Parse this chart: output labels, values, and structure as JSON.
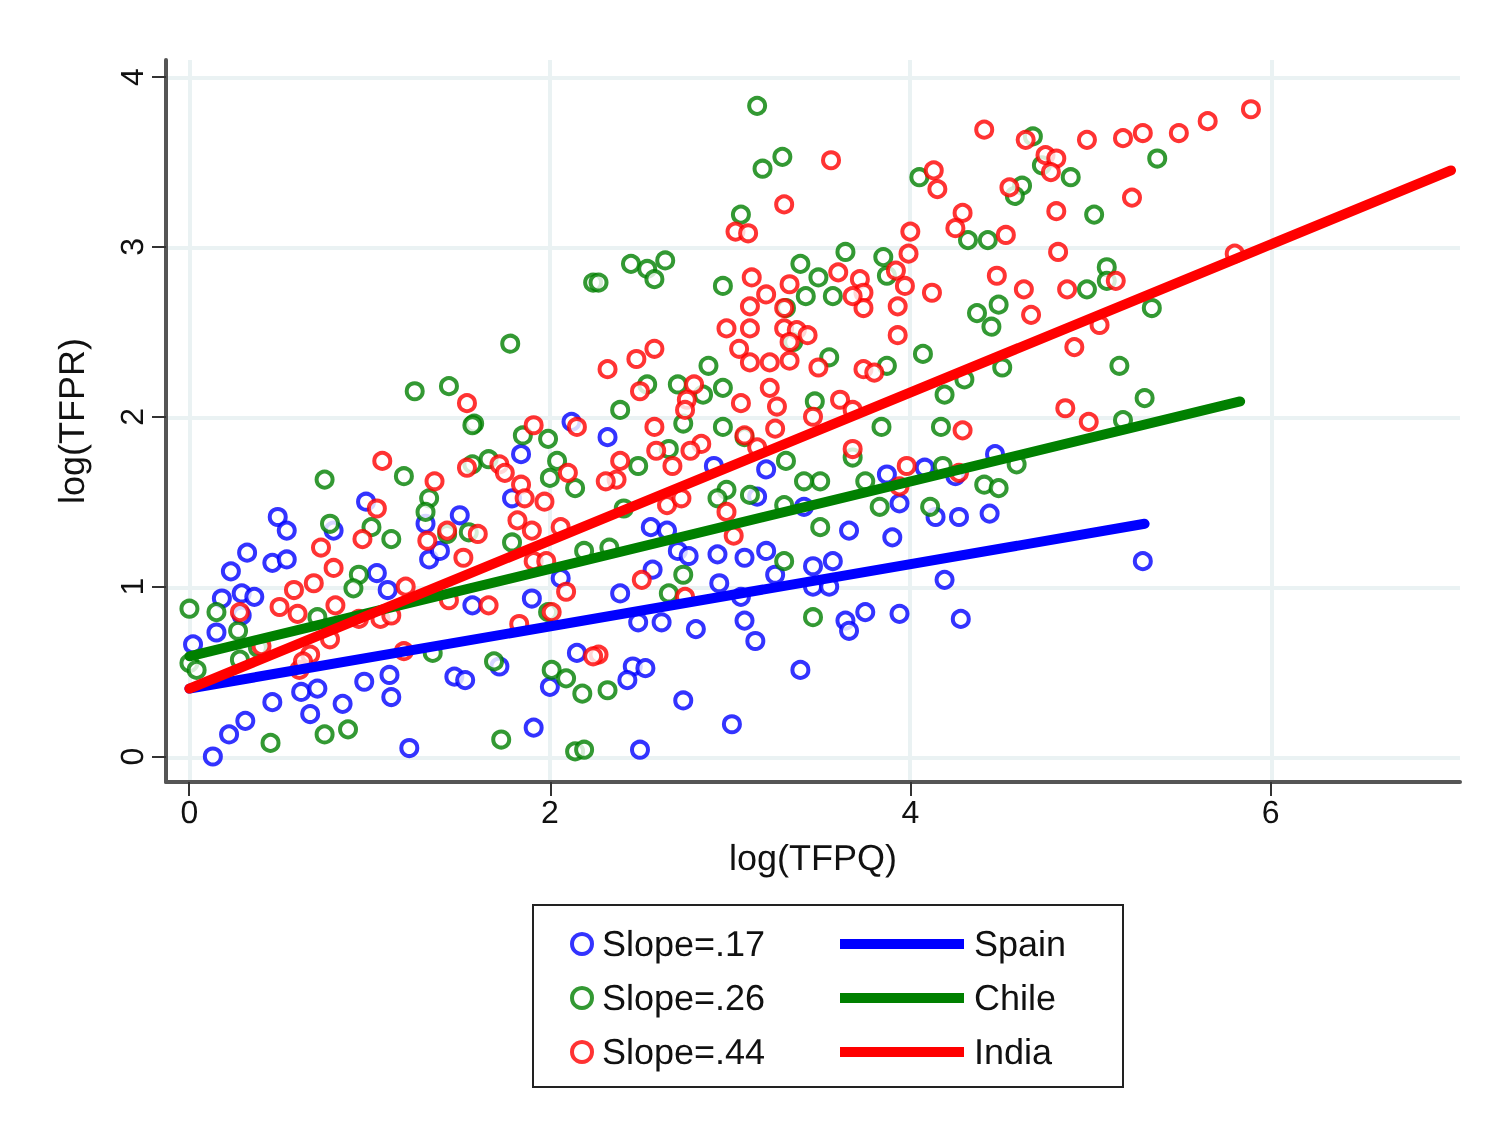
{
  "chart_data": {
    "type": "scatter",
    "xlabel": "log(TFPQ)",
    "ylabel": "log(TFPR)",
    "xlim": [
      -0.13,
      7.05
    ],
    "ylim": [
      -0.15,
      4.1
    ],
    "xticks": [
      0,
      2,
      4,
      6
    ],
    "yticks": [
      0,
      1,
      2,
      3,
      4
    ],
    "grid": true,
    "legend": "bottom",
    "series": [
      {
        "name": "Slope=.17",
        "marker": "circle",
        "color": "#0000ff",
        "x": [
          0.02,
          0.13,
          0.22,
          0.31,
          0.15,
          0.18,
          0.23,
          0.29,
          0.32,
          0.29,
          0.36,
          0.46,
          0.49,
          0.54,
          0.54,
          0.46,
          0.62,
          0.67,
          0.71,
          0.85,
          0.97,
          1.12,
          1.11,
          1.22,
          0.98,
          0.8,
          1.04,
          1.1,
          1.33,
          1.31,
          1.5,
          1.39,
          1.47,
          1.53,
          1.57,
          1.72,
          1.84,
          1.79,
          1.91,
          1.9,
          2.0,
          2.12,
          2.06,
          2.15,
          2.32,
          2.5,
          2.74,
          3.01,
          3.39,
          2.46,
          2.43,
          2.53,
          2.49,
          2.62,
          2.81,
          3.14,
          3.08,
          2.39,
          2.57,
          2.94,
          3.06,
          2.71,
          2.77,
          2.93,
          3.08,
          3.2,
          3.25,
          3.46,
          3.46,
          3.55,
          3.57,
          3.66,
          3.64,
          3.66,
          3.75,
          3.94,
          4.28,
          4.19,
          4.27,
          4.44,
          5.29,
          2.56,
          2.65,
          2.91,
          3.2,
          3.41,
          3.87,
          3.9,
          3.94,
          4.08,
          4.14,
          4.25,
          4.47,
          3.15
        ],
        "values": [
          0.66,
          0.0,
          0.13,
          0.21,
          0.73,
          0.93,
          1.09,
          0.83,
          1.2,
          0.96,
          0.94,
          1.14,
          1.41,
          1.33,
          1.16,
          0.32,
          0.38,
          0.25,
          0.4,
          0.31,
          0.44,
          0.35,
          0.48,
          0.05,
          1.5,
          1.33,
          1.08,
          0.98,
          1.16,
          1.37,
          1.42,
          1.21,
          0.47,
          0.45,
          0.89,
          0.53,
          1.78,
          1.52,
          0.17,
          0.93,
          0.41,
          1.97,
          1.05,
          0.61,
          1.88,
          0.04,
          0.33,
          0.19,
          0.51,
          0.53,
          0.45,
          0.52,
          0.79,
          0.79,
          0.75,
          0.68,
          0.8,
          0.96,
          1.1,
          1.02,
          0.94,
          1.21,
          1.18,
          1.19,
          1.17,
          1.21,
          1.07,
          1.12,
          1.0,
          1.0,
          1.15,
          1.33,
          0.8,
          0.74,
          0.85,
          0.84,
          0.81,
          1.04,
          1.41,
          1.43,
          1.15,
          1.35,
          1.33,
          1.71,
          1.69,
          1.47,
          1.66,
          1.29,
          1.49,
          1.7,
          1.41,
          1.65,
          1.78,
          1.53
        ]
      },
      {
        "name": "Slope=.26",
        "marker": "circle",
        "color": "#008000",
        "x": [
          1.25,
          1.44,
          1.78,
          1.58,
          2.24,
          3.15,
          3.18,
          3.29,
          3.06,
          2.27,
          2.45,
          2.54,
          2.58,
          2.64,
          2.96,
          3.39,
          3.49,
          3.64,
          3.85,
          3.87,
          3.42,
          3.57,
          3.31,
          3.35,
          2.88,
          2.54,
          2.71,
          2.85,
          2.96,
          3.55,
          3.87,
          4.07,
          4.05,
          4.32,
          4.43,
          4.68,
          4.73,
          4.62,
          4.58,
          4.89,
          5.02,
          5.37,
          4.37,
          4.49,
          4.45,
          5.09,
          5.09,
          4.98,
          5.34,
          5.16,
          5.3,
          4.51,
          4.19,
          4.3,
          2.39,
          3.47,
          3.84,
          4.17,
          5.18,
          0.0,
          0.0,
          0.04,
          0.15,
          0.27,
          0.28,
          0.45,
          0.38,
          0.75,
          0.78,
          0.75,
          0.88,
          0.71,
          0.94,
          0.91,
          1.01,
          1.12,
          1.19,
          1.33,
          1.31,
          1.43,
          1.57,
          1.57,
          1.66,
          1.55,
          1.35,
          1.69,
          1.73,
          1.79,
          1.85,
          1.99,
          2.04,
          2.0,
          2.14,
          2.19,
          2.01,
          2.09,
          2.18,
          2.14,
          2.19,
          1.99,
          2.32,
          2.66,
          2.74,
          3.46,
          3.3,
          4.11,
          4.41,
          4.49,
          4.59,
          4.18,
          3.83,
          3.75,
          3.5,
          3.41,
          3.68,
          3.31,
          3.11,
          2.98,
          2.93,
          3.3,
          3.5,
          2.49,
          2.66,
          2.74,
          2.96,
          3.08,
          2.41,
          2.33
        ],
        "values": [
          2.15,
          2.18,
          2.43,
          1.96,
          2.79,
          3.83,
          3.46,
          3.53,
          3.19,
          2.79,
          2.9,
          2.87,
          2.81,
          2.92,
          2.77,
          2.9,
          2.82,
          2.97,
          2.94,
          2.83,
          2.71,
          2.71,
          2.64,
          2.44,
          2.3,
          2.19,
          2.19,
          2.13,
          2.17,
          2.35,
          2.3,
          2.37,
          3.41,
          3.04,
          3.04,
          3.65,
          3.48,
          3.36,
          3.3,
          3.41,
          3.19,
          3.52,
          2.61,
          2.66,
          2.53,
          2.88,
          2.8,
          2.75,
          2.64,
          2.3,
          2.11,
          2.29,
          2.13,
          2.22,
          2.04,
          2.09,
          1.94,
          1.94,
          1.98,
          0.87,
          0.55,
          0.51,
          0.85,
          0.74,
          0.57,
          0.08,
          0.64,
          1.63,
          1.37,
          0.13,
          0.16,
          0.82,
          1.07,
          0.99,
          1.35,
          1.28,
          1.65,
          1.52,
          1.44,
          1.31,
          1.95,
          1.72,
          1.75,
          1.32,
          0.61,
          0.56,
          0.1,
          1.26,
          1.89,
          1.87,
          1.74,
          1.64,
          1.58,
          1.21,
          0.51,
          0.46,
          0.37,
          0.03,
          0.04,
          0.85,
          0.39,
          0.96,
          1.07,
          0.82,
          1.15,
          1.47,
          1.6,
          1.58,
          1.72,
          1.71,
          1.47,
          1.62,
          1.62,
          1.62,
          1.76,
          1.74,
          1.54,
          1.57,
          1.52,
          1.48,
          1.35,
          1.71,
          1.81,
          1.96,
          1.94,
          1.88,
          1.46,
          1.23
        ]
      },
      {
        "name": "Slope=.44",
        "marker": "circle",
        "color": "#ff0000",
        "x": [
          1.54,
          1.91,
          2.15,
          3.56,
          3.3,
          3.03,
          4.41,
          4.64,
          4.75,
          4.81,
          4.78,
          4.98,
          5.18,
          5.29,
          5.49,
          5.65,
          5.89,
          4.13,
          4.15,
          4.55,
          4.29,
          4.25,
          4.0,
          3.99,
          4.53,
          4.81,
          5.23,
          4.82,
          4.48,
          4.63,
          4.87,
          5.14,
          4.67,
          5.05,
          4.91,
          4.12,
          3.93,
          3.93,
          3.97,
          3.92,
          3.72,
          3.74,
          3.74,
          3.68,
          3.6,
          3.33,
          3.2,
          3.12,
          3.11,
          3.3,
          2.98,
          3.11,
          3.3,
          3.37,
          3.43,
          3.33,
          3.05,
          3.11,
          3.22,
          3.33,
          3.49,
          3.74,
          3.8,
          2.32,
          2.48,
          2.58,
          2.5,
          2.8,
          2.76,
          3.06,
          3.22,
          3.26,
          3.61,
          3.68,
          4.29,
          4.86,
          4.99,
          5.8,
          3.46,
          3.1,
          3.98,
          3.94,
          4.27,
          3.68,
          3.02,
          2.98,
          2.75,
          2.51,
          2.39,
          2.37,
          2.31,
          2.65,
          2.73,
          2.68,
          2.59,
          2.84,
          2.78,
          3.15,
          3.25,
          3.08,
          2.75,
          2.58,
          2.27,
          1.07,
          0.73,
          0.69,
          0.8,
          0.6,
          0.61,
          0.81,
          1.04,
          0.96,
          1.2,
          1.06,
          1.19,
          1.32,
          1.36,
          1.43,
          1.54,
          1.52,
          1.44,
          1.66,
          1.72,
          1.75,
          1.84,
          1.86,
          1.97,
          1.82,
          1.9,
          1.6,
          1.91,
          1.98,
          2.06,
          2.1,
          2.09,
          2.01,
          1.83,
          0.67,
          0.63,
          0.78,
          0.94,
          1.12,
          2.24,
          0.28,
          0.4,
          0.5,
          0.58
        ],
        "values": [
          2.08,
          1.95,
          1.94,
          3.51,
          3.25,
          3.09,
          3.69,
          3.63,
          3.54,
          3.52,
          3.44,
          3.63,
          3.64,
          3.67,
          3.67,
          3.74,
          3.81,
          3.45,
          3.34,
          3.35,
          3.2,
          3.11,
          3.09,
          2.96,
          3.07,
          3.21,
          3.29,
          2.97,
          2.83,
          2.75,
          2.75,
          2.8,
          2.6,
          2.54,
          2.41,
          2.73,
          2.65,
          2.48,
          2.77,
          2.86,
          2.81,
          2.73,
          2.64,
          2.71,
          2.85,
          2.78,
          2.72,
          2.82,
          2.65,
          2.64,
          2.52,
          2.52,
          2.52,
          2.51,
          2.48,
          2.44,
          2.4,
          2.32,
          2.32,
          2.33,
          2.29,
          2.28,
          2.26,
          2.28,
          2.34,
          2.4,
          2.15,
          2.19,
          2.1,
          2.08,
          2.17,
          2.06,
          2.1,
          2.04,
          1.92,
          2.05,
          1.97,
          2.96,
          2.0,
          3.08,
          1.71,
          1.59,
          1.67,
          1.81,
          1.3,
          1.44,
          0.94,
          1.04,
          1.74,
          1.63,
          1.62,
          1.48,
          1.52,
          1.71,
          1.8,
          1.84,
          1.8,
          1.82,
          1.93,
          1.89,
          2.04,
          1.94,
          0.6,
          1.74,
          1.23,
          1.02,
          1.11,
          0.84,
          0.51,
          0.89,
          1.46,
          1.28,
          1.0,
          0.81,
          0.62,
          1.27,
          1.62,
          1.33,
          1.7,
          1.17,
          0.92,
          0.89,
          1.72,
          1.67,
          1.6,
          1.52,
          1.5,
          1.39,
          1.33,
          1.31,
          1.15,
          1.15,
          1.35,
          1.67,
          0.97,
          0.85,
          0.78,
          0.6,
          0.56,
          0.69,
          0.81,
          0.83,
          0.59,
          0.85,
          0.65,
          0.88,
          0.98
        ]
      },
      {
        "name": "Spain",
        "type": "line",
        "marker": "none",
        "color": "#0000ff",
        "line_style": "solid",
        "x": [
          0,
          5.3
        ],
        "values": [
          0.4,
          1.37
        ]
      },
      {
        "name": "Chile",
        "type": "line",
        "marker": "none",
        "color": "#008000",
        "line_style": "solid",
        "x": [
          0,
          5.83
        ],
        "values": [
          0.59,
          2.09
        ]
      },
      {
        "name": "India",
        "type": "line",
        "marker": "none",
        "color": "#ff0000",
        "line_style": "solid",
        "x": [
          0,
          7.0
        ],
        "values": [
          0.4,
          3.45
        ]
      }
    ]
  }
}
